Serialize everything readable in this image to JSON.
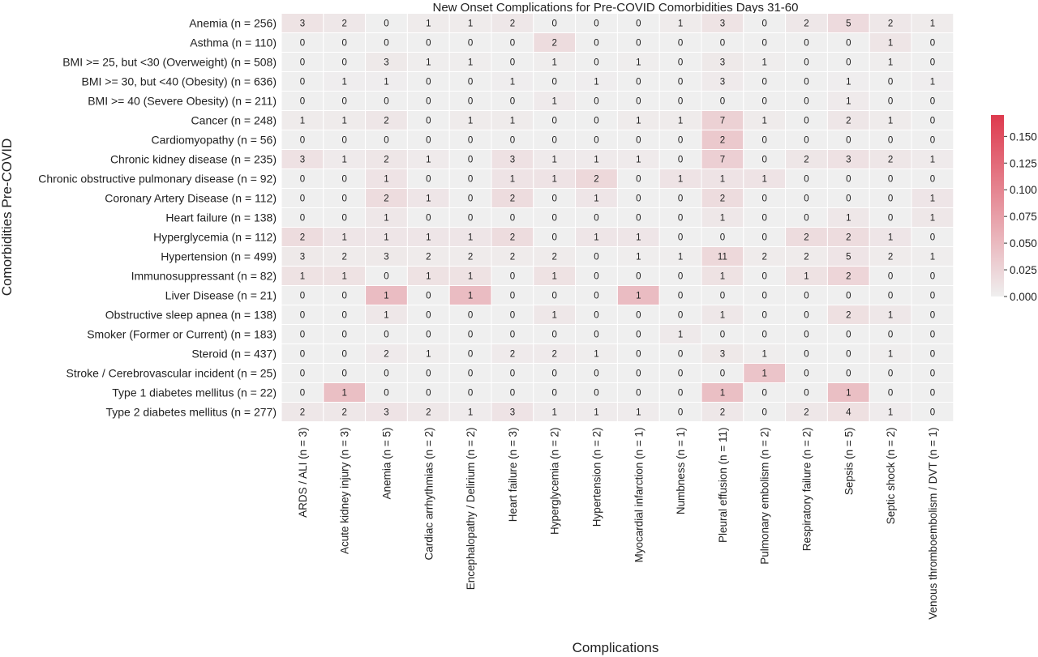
{
  "chart_data": {
    "type": "heatmap",
    "title": "New Onset Complications for Pre-COVID Comorbidities Days 31-60",
    "xlabel": "Complications",
    "ylabel": "Comorbidities Pre-COVID",
    "rows": [
      "Anemia (n = 256)",
      "Asthma (n = 110)",
      "BMI >= 25, but <30 (Overweight) (n = 508)",
      "BMI >= 30, but <40 (Obesity) (n = 636)",
      "BMI >= 40 (Severe Obesity) (n = 211)",
      "Cancer (n = 248)",
      "Cardiomyopathy (n = 56)",
      "Chronic kidney disease (n = 235)",
      "Chronic obstructive pulmonary disease (n = 92)",
      "Coronary Artery Disease (n = 112)",
      "Heart failure (n = 138)",
      "Hyperglycemia (n = 112)",
      "Hypertension (n = 499)",
      "Immunosuppressant (n = 82)",
      "Liver Disease (n = 21)",
      "Obstructive sleep apnea (n = 138)",
      "Smoker (Former or Current) (n = 183)",
      "Steroid (n = 437)",
      "Stroke / Cerebrovascular incident (n = 25)",
      "Type 1 diabetes mellitus (n = 22)",
      "Type 2 diabetes mellitus (n = 277)"
    ],
    "columns": [
      "ARDS / ALI (n = 3)",
      "Acute kidney injury (n = 3)",
      "Anemia (n = 5)",
      "Cardiac arrhythmias (n = 2)",
      "Encephalopathy / Delirium (n = 2)",
      "Heart failure (n = 3)",
      "Hyperglycemia (n = 2)",
      "Hypertension (n = 2)",
      "Myocardial infarction (n = 1)",
      "Numbness (n = 1)",
      "Pleural effusion (n = 11)",
      "Pulmonary embolism (n = 2)",
      "Respiratory failure (n = 2)",
      "Sepsis (n = 5)",
      "Septic shock (n = 2)",
      "Venous thromboembolism / DVT (n = 1)"
    ],
    "row_n": [
      256,
      110,
      508,
      636,
      211,
      248,
      56,
      235,
      92,
      112,
      138,
      112,
      499,
      82,
      21,
      138,
      183,
      437,
      25,
      22,
      277
    ],
    "values": [
      [
        3,
        2,
        0,
        1,
        1,
        2,
        0,
        0,
        0,
        1,
        3,
        0,
        2,
        5,
        2,
        1
      ],
      [
        0,
        0,
        0,
        0,
        0,
        0,
        2,
        0,
        0,
        0,
        0,
        0,
        0,
        0,
        1,
        0
      ],
      [
        0,
        0,
        3,
        1,
        1,
        0,
        1,
        0,
        1,
        0,
        3,
        1,
        0,
        0,
        1,
        0
      ],
      [
        0,
        1,
        1,
        0,
        0,
        1,
        0,
        1,
        0,
        0,
        3,
        0,
        0,
        1,
        0,
        1
      ],
      [
        0,
        0,
        0,
        0,
        0,
        0,
        1,
        0,
        0,
        0,
        0,
        0,
        0,
        1,
        0,
        0
      ],
      [
        1,
        1,
        2,
        0,
        1,
        1,
        0,
        0,
        1,
        1,
        7,
        1,
        0,
        2,
        1,
        0
      ],
      [
        0,
        0,
        0,
        0,
        0,
        0,
        0,
        0,
        0,
        0,
        2,
        0,
        0,
        0,
        0,
        0
      ],
      [
        3,
        1,
        2,
        1,
        0,
        3,
        1,
        1,
        1,
        0,
        7,
        0,
        2,
        3,
        2,
        1
      ],
      [
        0,
        0,
        1,
        0,
        0,
        1,
        1,
        2,
        0,
        1,
        1,
        1,
        0,
        0,
        0,
        0
      ],
      [
        0,
        0,
        2,
        1,
        0,
        2,
        0,
        1,
        0,
        0,
        2,
        0,
        0,
        0,
        0,
        1
      ],
      [
        0,
        0,
        1,
        0,
        0,
        0,
        0,
        0,
        0,
        0,
        1,
        0,
        0,
        1,
        0,
        1
      ],
      [
        2,
        1,
        1,
        1,
        1,
        2,
        0,
        1,
        1,
        0,
        0,
        0,
        2,
        2,
        1,
        0
      ],
      [
        3,
        2,
        3,
        2,
        2,
        2,
        2,
        0,
        1,
        1,
        11,
        2,
        2,
        5,
        2,
        1
      ],
      [
        1,
        1,
        0,
        1,
        1,
        0,
        1,
        0,
        0,
        0,
        1,
        0,
        1,
        2,
        0,
        0
      ],
      [
        0,
        0,
        1,
        0,
        1,
        0,
        0,
        0,
        1,
        0,
        0,
        0,
        0,
        0,
        0,
        0
      ],
      [
        0,
        0,
        1,
        0,
        0,
        0,
        1,
        0,
        0,
        0,
        1,
        0,
        0,
        2,
        1,
        0
      ],
      [
        0,
        0,
        0,
        0,
        0,
        0,
        0,
        0,
        0,
        1,
        0,
        0,
        0,
        0,
        0,
        0
      ],
      [
        0,
        0,
        2,
        1,
        0,
        2,
        2,
        1,
        0,
        0,
        3,
        1,
        0,
        0,
        1,
        0
      ],
      [
        0,
        0,
        0,
        0,
        0,
        0,
        0,
        0,
        0,
        0,
        0,
        1,
        0,
        0,
        0,
        0
      ],
      [
        0,
        1,
        0,
        0,
        0,
        0,
        0,
        0,
        0,
        0,
        1,
        0,
        0,
        1,
        0,
        0
      ],
      [
        2,
        2,
        3,
        2,
        1,
        3,
        1,
        1,
        1,
        0,
        2,
        0,
        2,
        4,
        1,
        0
      ]
    ],
    "colorbar": {
      "ticks": [
        "0.000",
        "0.025",
        "0.050",
        "0.075",
        "0.100",
        "0.125",
        "0.150"
      ],
      "range": [
        0,
        0.17
      ],
      "color_low": "#efefef",
      "color_high": "#de3a4e"
    },
    "grid": false
  }
}
